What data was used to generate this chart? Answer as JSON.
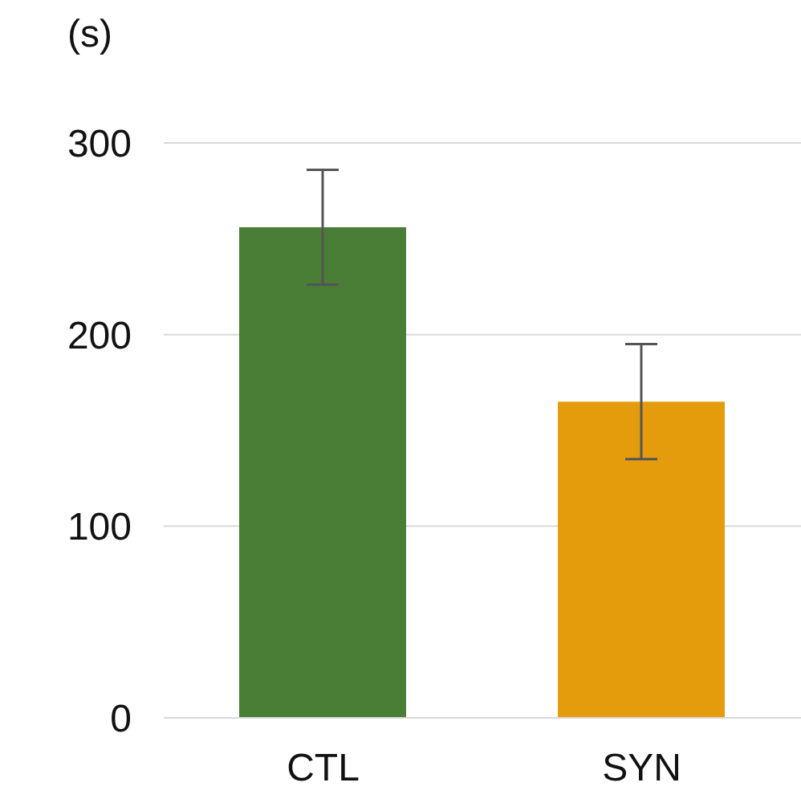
{
  "chart_data": {
    "type": "bar",
    "ylabel": "(s)",
    "categories": [
      "CTL",
      "SYN"
    ],
    "values": [
      256,
      165
    ],
    "errors": [
      30,
      30
    ],
    "colors": [
      "#4a7d35",
      "#e59c0c"
    ],
    "ylim": [
      0,
      300
    ],
    "yticks": [
      0,
      100,
      200,
      300
    ],
    "grid": "y"
  }
}
